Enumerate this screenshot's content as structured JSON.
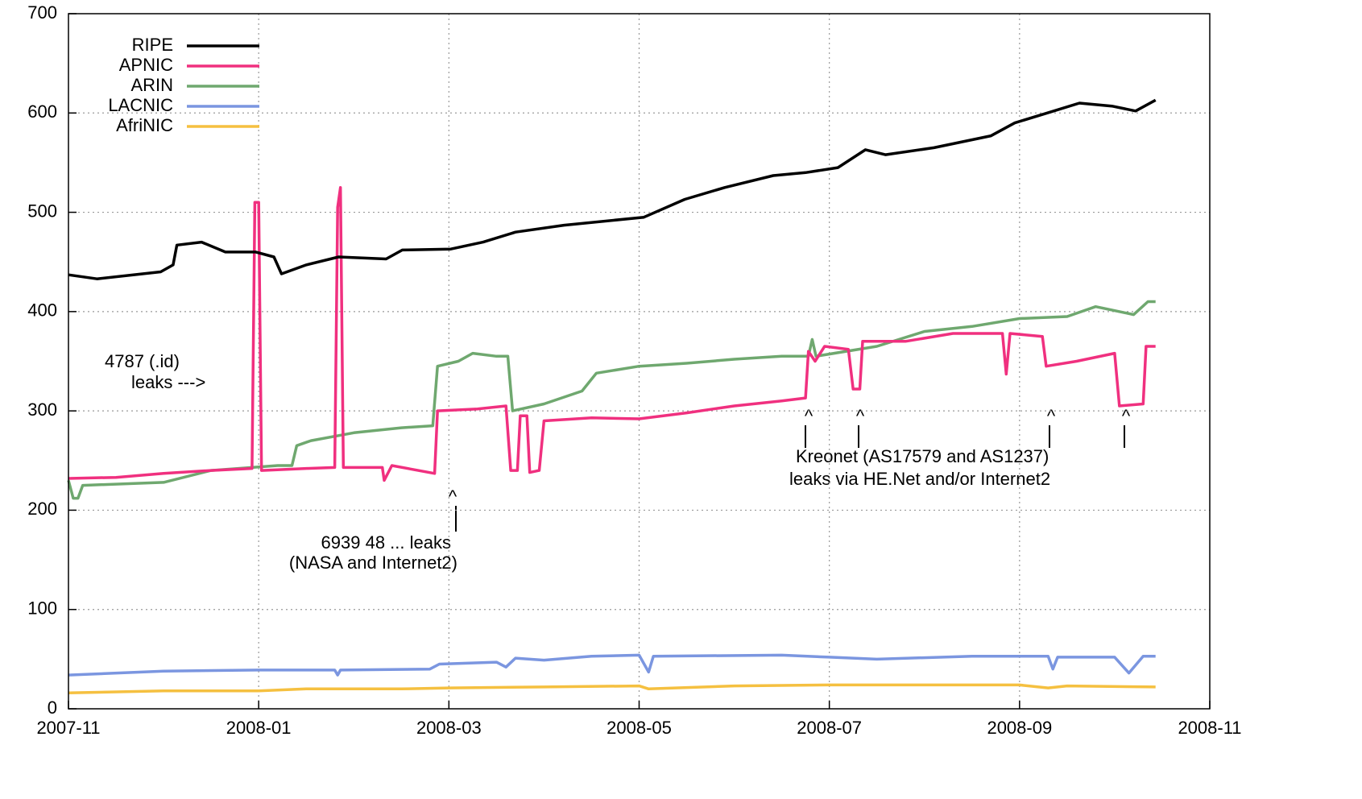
{
  "chart_data": {
    "type": "line",
    "xlim": [
      0,
      12
    ],
    "xticks": [
      {
        "value": 0,
        "label": "2007-11"
      },
      {
        "value": 2,
        "label": "2008-01"
      },
      {
        "value": 4,
        "label": "2008-03"
      },
      {
        "value": 6,
        "label": "2008-05"
      },
      {
        "value": 8,
        "label": "2008-07"
      },
      {
        "value": 10,
        "label": "2008-09"
      },
      {
        "value": 12,
        "label": "2008-11"
      }
    ],
    "ylim": [
      0,
      700
    ],
    "yticks": [
      0,
      100,
      200,
      300,
      400,
      500,
      600,
      700
    ],
    "grid": true,
    "legend": "top-left",
    "series": [
      {
        "name": "RIPE",
        "color": "#000000",
        "x": [
          0,
          0.3,
          0.97,
          1.1,
          1.14,
          1.4,
          1.65,
          1.97,
          2.16,
          2.24,
          2.5,
          2.84,
          3.34,
          3.51,
          4.02,
          4.36,
          4.7,
          5.21,
          6.05,
          6.48,
          6.9,
          7.41,
          7.75,
          8.09,
          8.38,
          8.59,
          9.1,
          9.7,
          9.95,
          10.29,
          10.63,
          10.97,
          11.22,
          11.43
        ],
        "values": [
          437,
          433,
          440,
          447,
          467,
          470,
          460,
          460,
          455,
          438,
          447,
          455,
          453,
          462,
          463,
          470,
          480,
          487,
          495,
          513,
          525,
          537,
          540,
          545,
          563,
          558,
          565,
          577,
          590,
          600,
          610,
          607,
          602,
          613
        ]
      },
      {
        "name": "APNIC",
        "color": "#f0307f",
        "x": [
          0,
          0.5,
          1.0,
          1.5,
          1.93,
          1.96,
          2.0,
          2.03,
          2.5,
          2.8,
          2.83,
          2.86,
          2.89,
          3.3,
          3.32,
          3.4,
          3.85,
          3.88,
          4.3,
          4.6,
          4.65,
          4.72,
          4.75,
          4.82,
          4.85,
          4.95,
          5.0,
          5.5,
          6.0,
          6.5,
          7.0,
          7.5,
          7.75,
          7.78,
          7.85,
          7.95,
          8.2,
          8.25,
          8.32,
          8.35,
          8.8,
          9.3,
          9.82,
          9.86,
          9.9,
          10.24,
          10.28,
          10.6,
          11.0,
          11.05,
          11.3,
          11.33,
          11.43
        ],
        "values": [
          232,
          233,
          237,
          240,
          242,
          510,
          510,
          240,
          242,
          243,
          505,
          525,
          243,
          243,
          230,
          245,
          237,
          300,
          302,
          305,
          240,
          240,
          295,
          295,
          238,
          240,
          290,
          293,
          292,
          298,
          305,
          310,
          313,
          360,
          350,
          365,
          362,
          322,
          322,
          370,
          370,
          378,
          378,
          337,
          378,
          375,
          345,
          350,
          358,
          305,
          307,
          365,
          365
        ]
      },
      {
        "name": "ARIN",
        "color": "#6fa86f",
        "x": [
          0,
          0.05,
          0.1,
          0.15,
          1.0,
          1.5,
          2.2,
          2.35,
          2.4,
          2.55,
          3.0,
          3.5,
          3.83,
          3.88,
          4.1,
          4.25,
          4.5,
          4.62,
          4.67,
          5.0,
          5.4,
          5.55,
          6.0,
          6.5,
          7.0,
          7.5,
          7.78,
          7.82,
          7.86,
          8.5,
          9.0,
          9.5,
          10.0,
          10.5,
          10.8,
          11.2,
          11.35,
          11.43
        ],
        "values": [
          230,
          212,
          212,
          225,
          228,
          240,
          245,
          245,
          265,
          270,
          278,
          283,
          285,
          345,
          350,
          358,
          355,
          355,
          300,
          307,
          320,
          338,
          345,
          348,
          352,
          355,
          355,
          372,
          355,
          365,
          380,
          385,
          393,
          395,
          405,
          397,
          410,
          410
        ]
      },
      {
        "name": "LACNIC",
        "color": "#7b96e0",
        "x": [
          0,
          1.0,
          2.0,
          2.8,
          2.83,
          2.86,
          3.8,
          3.9,
          4.5,
          4.6,
          4.7,
          5.0,
          5.5,
          6.0,
          6.1,
          6.15,
          7.5,
          8.0,
          8.5,
          9.5,
          10.3,
          10.35,
          10.4,
          11.0,
          11.15,
          11.3,
          11.43
        ],
        "values": [
          34,
          38,
          39,
          39,
          34,
          39,
          40,
          45,
          47,
          42,
          51,
          49,
          53,
          54,
          37,
          53,
          54,
          52,
          50,
          53,
          53,
          40,
          52,
          52,
          36,
          53,
          53
        ]
      },
      {
        "name": "AfriNIC",
        "color": "#f5c040",
        "x": [
          0,
          1.0,
          2.0,
          2.5,
          3.5,
          4.0,
          5.0,
          6.0,
          6.1,
          7.0,
          8.0,
          9.0,
          10.0,
          10.3,
          10.5,
          11.43
        ],
        "values": [
          16,
          18,
          18,
          20,
          20,
          21,
          22,
          23,
          20,
          23,
          24,
          24,
          24,
          21,
          23,
          22
        ]
      }
    ],
    "annotations": [
      "4787 (.id)",
      "leaks --->",
      "6939 48 ... leaks",
      "(NASA and Internet2)",
      "Kreonet (AS17579 and AS1237)",
      "leaks via HE.Net and/or Internet2",
      "^",
      "^",
      "^",
      "^",
      "^"
    ]
  }
}
